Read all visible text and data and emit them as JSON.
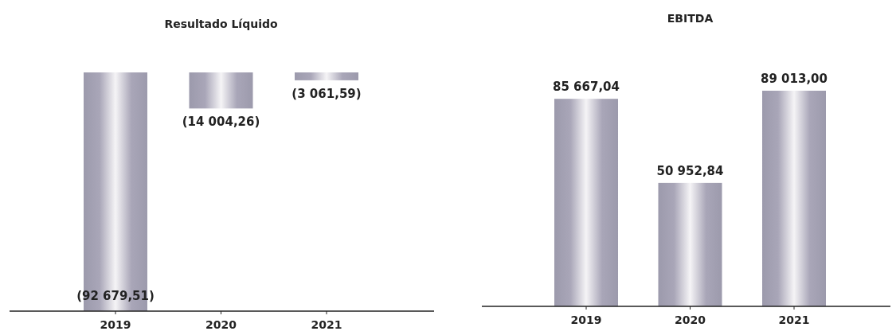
{
  "chart_data": [
    {
      "type": "bar",
      "title": "Resultado Líquido",
      "categories": [
        "2019",
        "2020",
        "2021"
      ],
      "values": [
        -92679.51,
        -14004.26,
        -3061.59
      ],
      "color": "#a9a6b8",
      "value_labels": [
        "(92 679,51)",
        "(14 004,26)",
        "(3 061,59)"
      ]
    },
    {
      "type": "bar",
      "title": "EBITDA",
      "categories": [
        "2019",
        "2020",
        "2021"
      ],
      "values": [
        85667.04,
        50952.84,
        89013.0
      ],
      "color": "#a9a6b8",
      "value_labels": [
        "85 667,04",
        "50 952,84",
        "89 013,00"
      ]
    }
  ]
}
